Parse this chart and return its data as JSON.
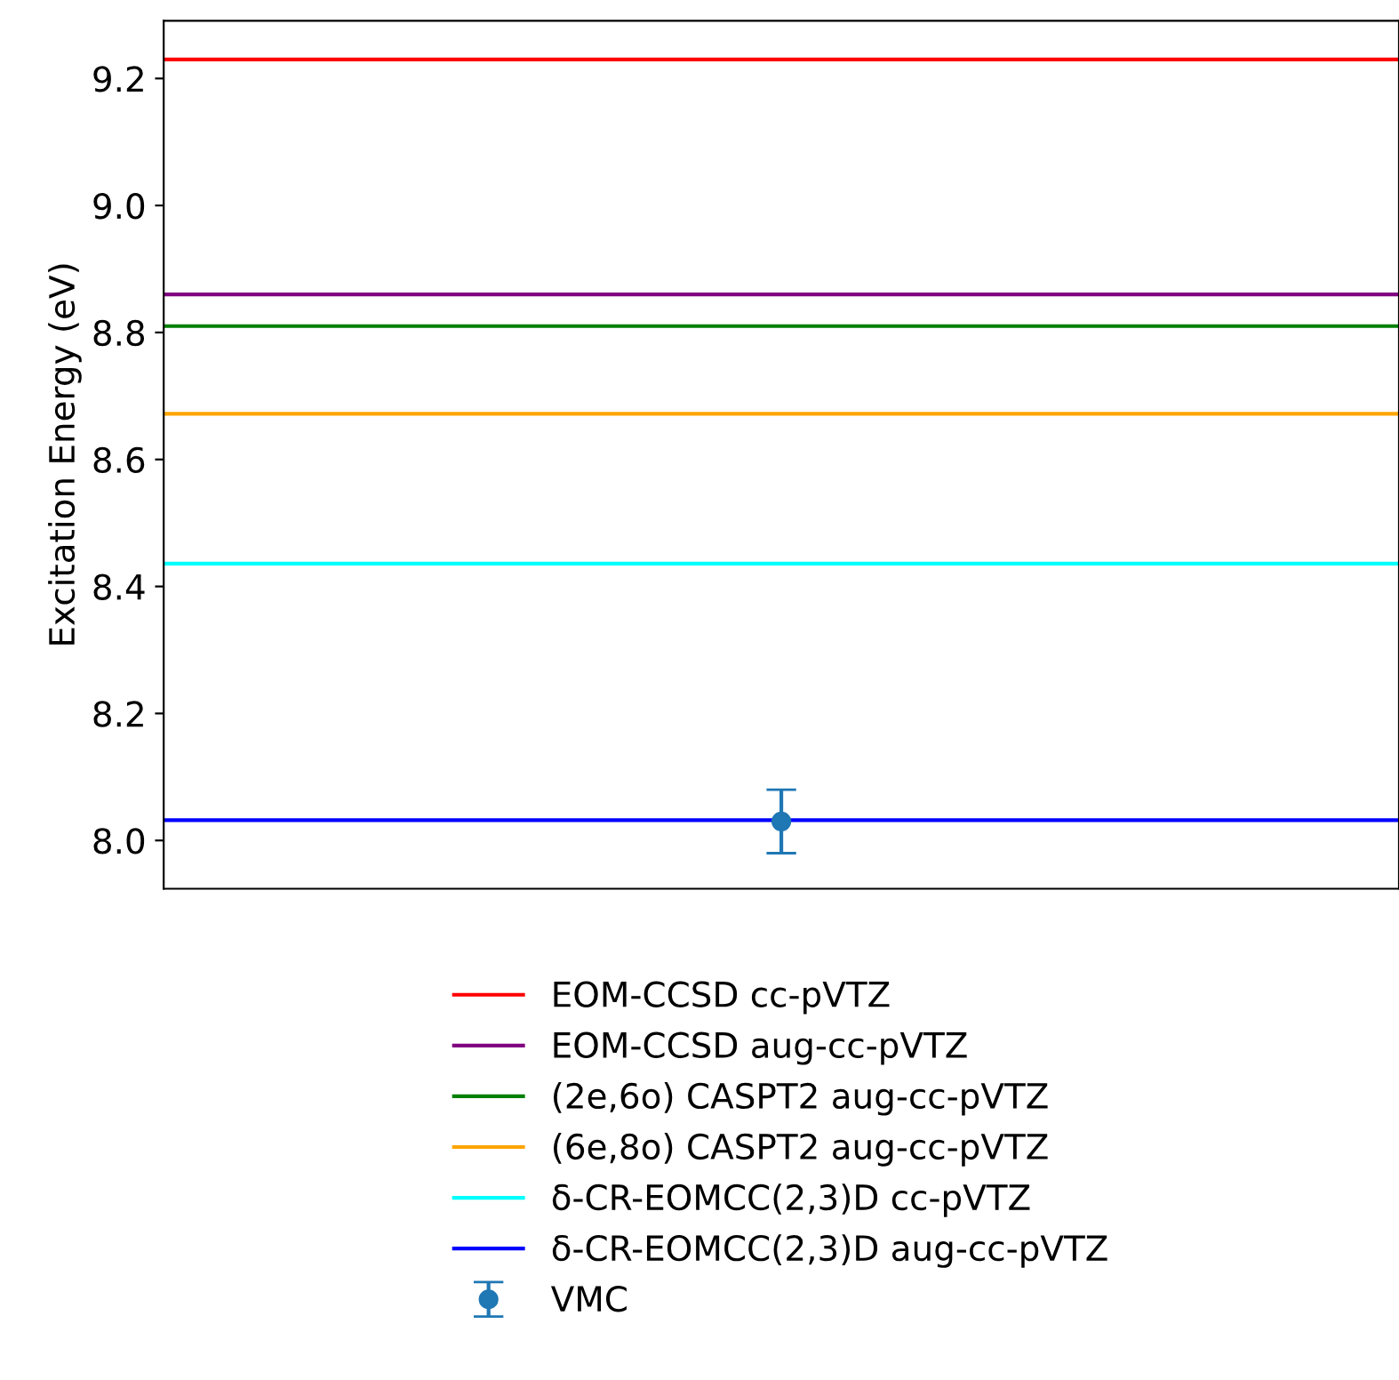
{
  "chart_data": {
    "type": "scatter",
    "ylabel": "Excitation Energy (eV)",
    "categories": [
      null
    ],
    "series": [
      {
        "name": "VMC",
        "color": "#1f77b4",
        "values": [
          8.03
        ],
        "errors": [
          0.05
        ]
      }
    ],
    "ref_lines": [
      {
        "axis": "y",
        "value": 9.23,
        "label": "EOM-CCSD cc-pVTZ",
        "color": "#ff0000"
      },
      {
        "axis": "y",
        "value": 8.86,
        "label": "EOM-CCSD aug-cc-pVTZ",
        "color": "#800080"
      },
      {
        "axis": "y",
        "value": 8.81,
        "label": "(2e,6o) CASPT2 aug-cc-pVTZ",
        "color": "#008000"
      },
      {
        "axis": "y",
        "value": 8.672,
        "label": "(6e,8o) CASPT2 aug-cc-pVTZ",
        "color": "#ffa500"
      },
      {
        "axis": "y",
        "value": 8.436,
        "label": "δ-CR-EOMCC(2,3)D cc-pVTZ",
        "color": "#00ffff"
      },
      {
        "axis": "y",
        "value": 8.032,
        "label": "δ-CR-EOMCC(2,3)D aug-cc-pVTZ",
        "color": "#0000ff"
      }
    ],
    "ylim": [
      7.924,
      9.291
    ],
    "yticks": [
      {
        "value": 8.0,
        "label": "8.0"
      },
      {
        "value": 8.2,
        "label": "8.2"
      },
      {
        "value": 8.4,
        "label": "8.4"
      },
      {
        "value": 8.6,
        "label": "8.6"
      },
      {
        "value": 8.8,
        "label": "8.8"
      },
      {
        "value": 9.0,
        "label": "9.0"
      },
      {
        "value": 9.2,
        "label": "9.2"
      }
    ],
    "grid": false,
    "legend": "bottom",
    "marker": "circle"
  }
}
